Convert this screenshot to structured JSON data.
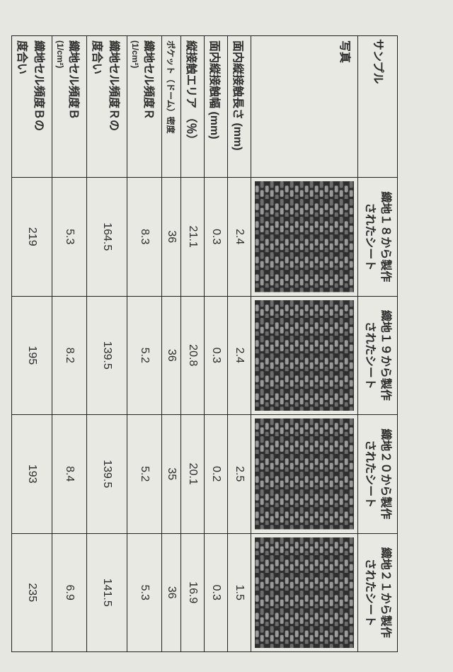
{
  "colors": {
    "page_bg": "#e6e7e1",
    "border": "#222222",
    "text": "#2d2d2d",
    "texture_dark": "#2e2e2e",
    "texture_mid": "#6d6d6d",
    "texture_light": "#9a9a9a"
  },
  "header": {
    "sample_label": "サンプル",
    "columns": [
      "織地１８から製作\nされたシート",
      "織地１９から製作\nされたシート",
      "織地２０から製作\nされたシート",
      "織地２１から製作\nされたシート"
    ]
  },
  "photo_row_label": "写真",
  "rows": [
    {
      "label": "面内縦接触長さ (mm)",
      "vals": [
        "2.4",
        "2.4",
        "2.5",
        "1.5"
      ]
    },
    {
      "label": "面内縦接触幅 (mm)",
      "vals": [
        "0.3",
        "0.3",
        "0.2",
        "0.3"
      ]
    },
    {
      "label": "縦接触エリア （％）",
      "vals": [
        "21.1",
        "20.8",
        "20.1",
        "16.9"
      ]
    },
    {
      "label": "ポケット（ドーム）密度",
      "vals": [
        "36",
        "36",
        "35",
        "36"
      ],
      "small": true
    },
    {
      "label": "織地セル頻度Ｒ",
      "unit": "(1/cm²)",
      "vals": [
        "8.3",
        "5.2",
        "5.2",
        "5.3"
      ]
    },
    {
      "label": "織地セル頻度Ｒの\n度合い",
      "vals": [
        "164.5",
        "139.5",
        "139.5",
        "141.5"
      ]
    },
    {
      "label": "織地セル頻度Ｂ",
      "unit": "(1/cm²)",
      "vals": [
        "5.3",
        "8.2",
        "8.4",
        "6.9"
      ]
    },
    {
      "label": "織地セル頻度Ｂの\n度合い",
      "vals": [
        "219",
        "195",
        "193",
        "235"
      ]
    }
  ]
}
